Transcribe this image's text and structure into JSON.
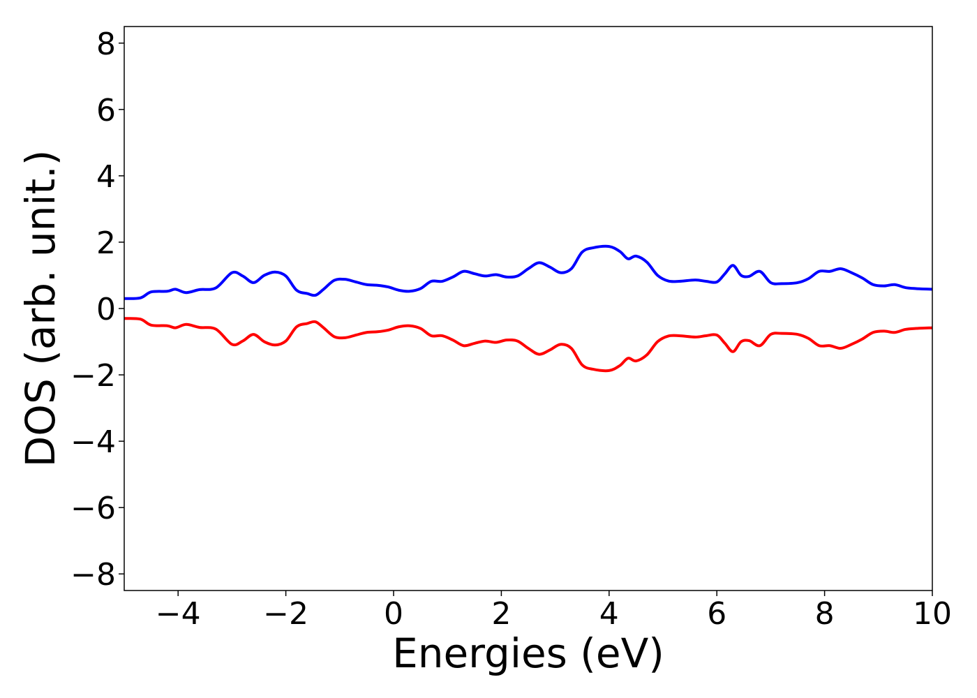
{
  "chart_data": {
    "type": "line",
    "title": "",
    "xlabel": "Energies (eV)",
    "ylabel": "DOS (arb. unit.)",
    "xlim": [
      -5,
      10
    ],
    "ylim": [
      -8.5,
      8.5
    ],
    "xticks": [
      -4,
      -2,
      0,
      2,
      4,
      6,
      8,
      10
    ],
    "yticks": [
      -8,
      -6,
      -4,
      -2,
      0,
      2,
      4,
      6,
      8
    ],
    "xtick_labels": [
      "−4",
      "−2",
      "0",
      "2",
      "4",
      "6",
      "8",
      "10"
    ],
    "ytick_labels": [
      "−8",
      "−6",
      "−4",
      "−2",
      "0",
      "2",
      "4",
      "6",
      "8"
    ],
    "grid": false,
    "legend": "none",
    "series": [
      {
        "color": "#0000ff",
        "x": [
          -5.0,
          -4.7,
          -4.5,
          -4.2,
          -4.05,
          -3.85,
          -3.6,
          -3.3,
          -3.0,
          -2.8,
          -2.6,
          -2.4,
          -2.2,
          -2.0,
          -1.8,
          -1.6,
          -1.45,
          -1.3,
          -1.1,
          -0.9,
          -0.7,
          -0.5,
          -0.3,
          -0.1,
          0.1,
          0.3,
          0.5,
          0.7,
          0.9,
          1.1,
          1.3,
          1.5,
          1.7,
          1.9,
          2.1,
          2.3,
          2.5,
          2.7,
          2.9,
          3.1,
          3.3,
          3.5,
          3.7,
          4.0,
          4.2,
          4.35,
          4.5,
          4.7,
          4.9,
          5.1,
          5.3,
          5.6,
          5.8,
          6.0,
          6.15,
          6.3,
          6.45,
          6.6,
          6.8,
          7.0,
          7.2,
          7.5,
          7.7,
          7.9,
          8.1,
          8.3,
          8.5,
          8.7,
          8.9,
          9.1,
          9.3,
          9.5,
          9.7,
          10.0
        ],
        "values": [
          0.3,
          0.32,
          0.5,
          0.52,
          0.58,
          0.48,
          0.57,
          0.62,
          1.08,
          0.98,
          0.78,
          1.0,
          1.1,
          0.98,
          0.55,
          0.45,
          0.4,
          0.58,
          0.85,
          0.88,
          0.8,
          0.72,
          0.7,
          0.65,
          0.55,
          0.52,
          0.6,
          0.82,
          0.82,
          0.95,
          1.12,
          1.05,
          0.98,
          1.02,
          0.95,
          0.98,
          1.2,
          1.38,
          1.25,
          1.08,
          1.2,
          1.7,
          1.83,
          1.87,
          1.72,
          1.5,
          1.58,
          1.4,
          1.0,
          0.83,
          0.82,
          0.86,
          0.82,
          0.8,
          1.05,
          1.3,
          1.0,
          0.97,
          1.12,
          0.78,
          0.75,
          0.78,
          0.9,
          1.12,
          1.12,
          1.2,
          1.08,
          0.92,
          0.72,
          0.68,
          0.72,
          0.63,
          0.6,
          0.58
        ]
      },
      {
        "color": "#ff0000",
        "x": [
          -5.0,
          -4.7,
          -4.5,
          -4.2,
          -4.05,
          -3.85,
          -3.6,
          -3.3,
          -3.0,
          -2.8,
          -2.6,
          -2.4,
          -2.2,
          -2.0,
          -1.8,
          -1.6,
          -1.45,
          -1.3,
          -1.1,
          -0.9,
          -0.7,
          -0.5,
          -0.3,
          -0.1,
          0.1,
          0.3,
          0.5,
          0.7,
          0.9,
          1.1,
          1.3,
          1.5,
          1.7,
          1.9,
          2.1,
          2.3,
          2.5,
          2.7,
          2.9,
          3.1,
          3.3,
          3.5,
          3.7,
          4.0,
          4.2,
          4.35,
          4.5,
          4.7,
          4.9,
          5.1,
          5.3,
          5.6,
          5.8,
          6.0,
          6.15,
          6.3,
          6.45,
          6.6,
          6.8,
          7.0,
          7.2,
          7.5,
          7.7,
          7.9,
          8.1,
          8.3,
          8.5,
          8.7,
          8.9,
          9.1,
          9.3,
          9.5,
          9.7,
          10.0
        ],
        "values": [
          -0.3,
          -0.32,
          -0.5,
          -0.52,
          -0.58,
          -0.48,
          -0.57,
          -0.62,
          -1.08,
          -0.98,
          -0.78,
          -1.0,
          -1.1,
          -0.98,
          -0.55,
          -0.45,
          -0.4,
          -0.58,
          -0.85,
          -0.88,
          -0.8,
          -0.72,
          -0.7,
          -0.65,
          -0.55,
          -0.52,
          -0.6,
          -0.82,
          -0.82,
          -0.95,
          -1.12,
          -1.05,
          -0.98,
          -1.02,
          -0.95,
          -0.98,
          -1.2,
          -1.38,
          -1.25,
          -1.08,
          -1.2,
          -1.7,
          -1.83,
          -1.87,
          -1.72,
          -1.5,
          -1.58,
          -1.4,
          -1.0,
          -0.83,
          -0.82,
          -0.86,
          -0.82,
          -0.8,
          -1.05,
          -1.3,
          -1.0,
          -0.97,
          -1.12,
          -0.78,
          -0.75,
          -0.78,
          -0.9,
          -1.12,
          -1.12,
          -1.2,
          -1.08,
          -0.92,
          -0.72,
          -0.68,
          -0.72,
          -0.63,
          -0.6,
          -0.58
        ]
      }
    ]
  }
}
